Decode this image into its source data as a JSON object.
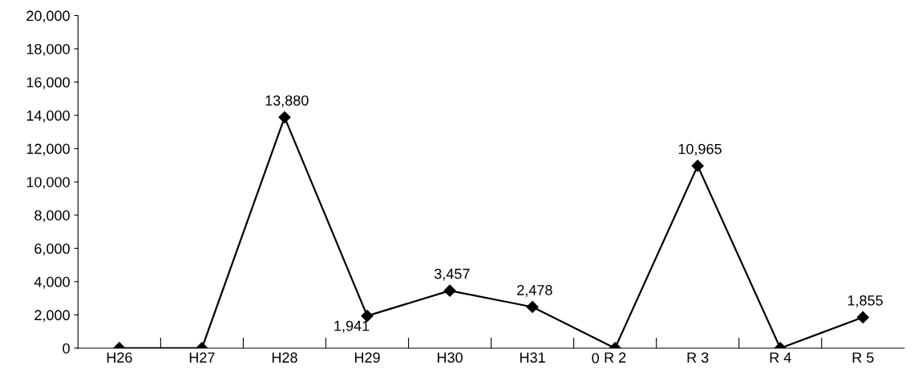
{
  "chart_data": {
    "type": "line",
    "categories": [
      "H26",
      "H27",
      "H28",
      "H29",
      "H30",
      "H31",
      "R 2",
      "R 3",
      "R 4",
      "R 5"
    ],
    "series": [
      {
        "color": "#000000",
        "values": [
          0,
          0,
          13880,
          1941,
          3457,
          2478,
          0,
          10965,
          0,
          1855
        ],
        "value_labels": [
          null,
          null,
          "13,880",
          "1,941",
          "3,457",
          "2,478",
          "0",
          "10,965",
          null,
          "1,855"
        ]
      }
    ],
    "ylim": [
      0,
      20000
    ],
    "yticks": [
      {
        "value": 0,
        "label": "0"
      },
      {
        "value": 2000,
        "label": "2,000"
      },
      {
        "value": 4000,
        "label": "4,000"
      },
      {
        "value": 6000,
        "label": "6,000"
      },
      {
        "value": 8000,
        "label": "8,000"
      },
      {
        "value": 10000,
        "label": "10,000"
      },
      {
        "value": 12000,
        "label": "12,000"
      },
      {
        "value": 14000,
        "label": "14,000"
      },
      {
        "value": 16000,
        "label": "16,000"
      },
      {
        "value": 18000,
        "label": "18,000"
      },
      {
        "value": 20000,
        "label": "20,000"
      }
    ],
    "marker": "diamond",
    "line_style": "solid",
    "grid": false,
    "legend": false
  }
}
